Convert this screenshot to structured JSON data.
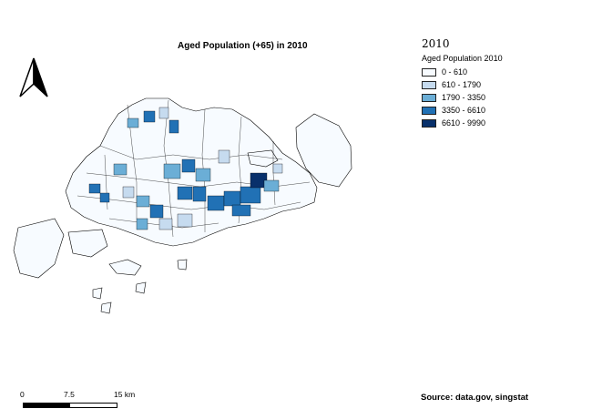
{
  "title": "Aged Population (+65) in 2010",
  "legend": {
    "year": "2010",
    "heading": "Aged Population 2010",
    "classes": [
      {
        "label": "0 - 610",
        "color": "#f7fbff"
      },
      {
        "label": "610 - 1790",
        "color": "#c6dbef"
      },
      {
        "label": "1790 - 3350",
        "color": "#6baed6"
      },
      {
        "label": "3350 - 6610",
        "color": "#2171b5"
      },
      {
        "label": "6610 - 9990",
        "color": "#08306b"
      }
    ]
  },
  "scale": {
    "labels": [
      "0",
      "7.5",
      "15 km"
    ]
  },
  "source": "Source: data.gov, singstat",
  "north_arrow": "north-arrow-icon"
}
